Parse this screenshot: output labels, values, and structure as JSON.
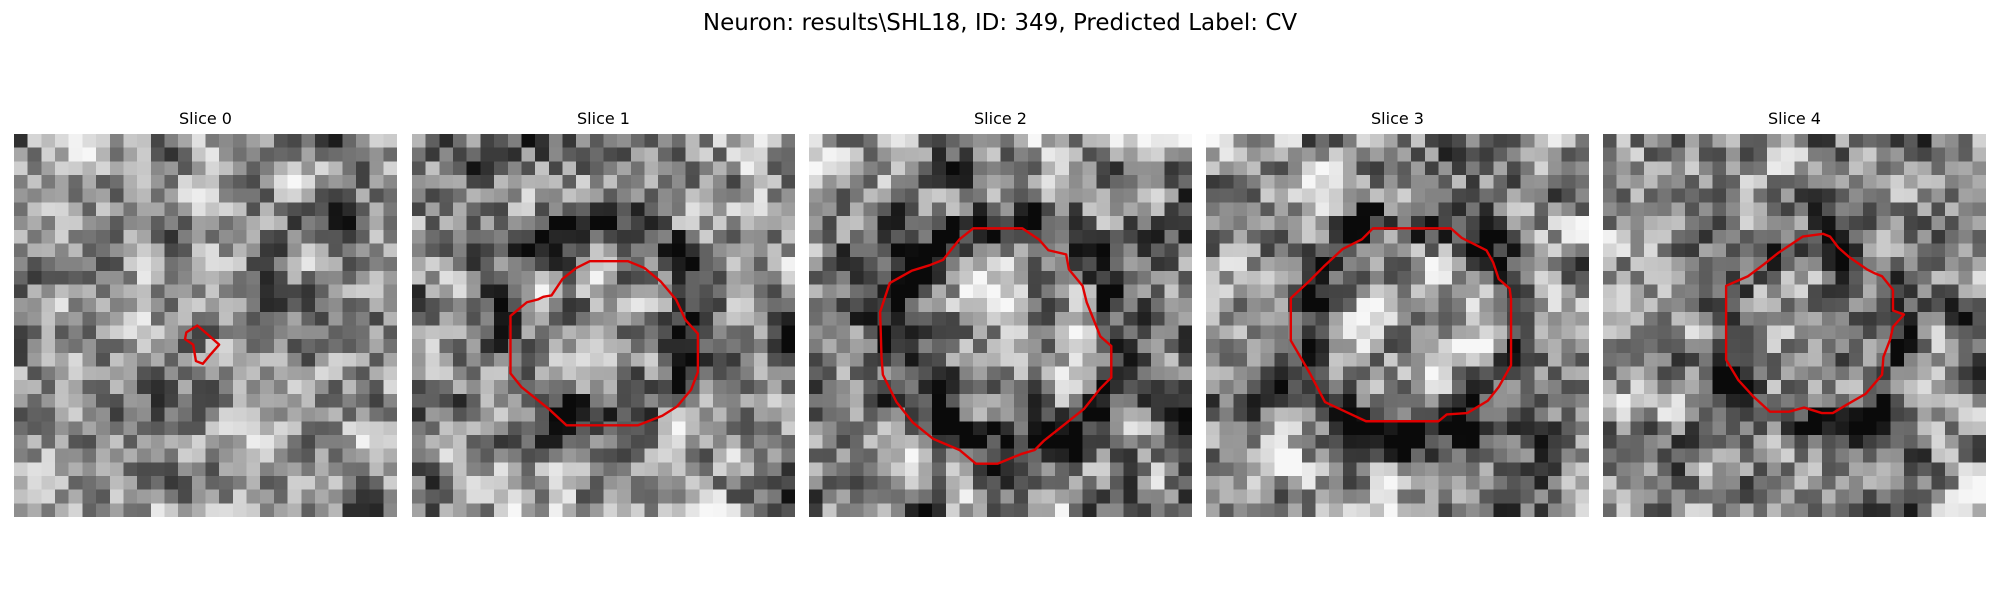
{
  "figure": {
    "title": "Neuron: results\\SHL18, ID: 349, Predicted Label: CV"
  },
  "colors": {
    "background": "#ffffff",
    "contour": "#e00000",
    "colormap": "grayscale"
  },
  "grid": {
    "rows": 28,
    "cols": 28
  },
  "panels": [
    {
      "title": "Slice 0",
      "seed": 11,
      "contrast": 0.55,
      "ring": null,
      "contour": [
        [
          12.6,
          14.5
        ],
        [
          13.4,
          14.0
        ],
        [
          14.1,
          14.6
        ],
        [
          15.0,
          15.4
        ],
        [
          14.3,
          16.2
        ],
        [
          13.8,
          16.8
        ],
        [
          13.3,
          16.6
        ],
        [
          13.1,
          15.4
        ],
        [
          12.5,
          15.0
        ]
      ]
    },
    {
      "title": "Slice 1",
      "seed": 23,
      "contrast": 0.7,
      "ring": {
        "cx": 13.8,
        "cy": 13.7,
        "r": 7.2,
        "w": 1.7,
        "depth": 0.35
      },
      "contour": [
        [
          10.2,
          11.8
        ],
        [
          11.0,
          10.6
        ],
        [
          12.0,
          9.8
        ],
        [
          13.0,
          9.3
        ],
        [
          15.8,
          9.3
        ],
        [
          17.0,
          9.8
        ],
        [
          18.2,
          10.8
        ],
        [
          19.3,
          12.1
        ],
        [
          20.0,
          13.6
        ],
        [
          20.9,
          14.6
        ],
        [
          20.9,
          17.4
        ],
        [
          20.4,
          18.7
        ],
        [
          19.4,
          19.9
        ],
        [
          18.3,
          20.6
        ],
        [
          16.5,
          21.3
        ],
        [
          11.3,
          21.3
        ],
        [
          10.0,
          20.1
        ],
        [
          8.0,
          18.5
        ],
        [
          7.2,
          17.5
        ],
        [
          7.2,
          13.3
        ],
        [
          8.4,
          12.3
        ],
        [
          9.2,
          12.1
        ],
        [
          9.6,
          11.9
        ]
      ]
    },
    {
      "title": "Slice 2",
      "seed": 37,
      "contrast": 0.75,
      "ring": {
        "cx": 14.6,
        "cy": 14.6,
        "r": 8.3,
        "w": 1.8,
        "depth": 0.4
      },
      "contour": [
        [
          9.8,
          9.2
        ],
        [
          11.0,
          7.7
        ],
        [
          12.0,
          6.9
        ],
        [
          15.6,
          6.9
        ],
        [
          16.8,
          7.7
        ],
        [
          17.5,
          8.5
        ],
        [
          18.8,
          8.8
        ],
        [
          19.0,
          9.9
        ],
        [
          20.0,
          11.1
        ],
        [
          20.3,
          12.3
        ],
        [
          21.3,
          14.8
        ],
        [
          22.1,
          15.5
        ],
        [
          22.1,
          17.8
        ],
        [
          21.3,
          18.6
        ],
        [
          20.1,
          20.1
        ],
        [
          18.6,
          21.3
        ],
        [
          17.2,
          22.4
        ],
        [
          16.5,
          23.1
        ],
        [
          15.5,
          23.4
        ],
        [
          13.8,
          24.1
        ],
        [
          12.2,
          24.1
        ],
        [
          11.0,
          23.1
        ],
        [
          9.1,
          22.3
        ],
        [
          7.6,
          21.1
        ],
        [
          6.4,
          19.6
        ],
        [
          5.4,
          17.6
        ],
        [
          5.3,
          16.3
        ],
        [
          5.2,
          13.0
        ],
        [
          5.9,
          10.9
        ],
        [
          7.5,
          10.0
        ],
        [
          8.8,
          9.6
        ]
      ]
    },
    {
      "title": "Slice 3",
      "seed": 53,
      "contrast": 0.72,
      "ring": {
        "cx": 14.8,
        "cy": 14.2,
        "r": 7.9,
        "w": 1.7,
        "depth": 0.36
      },
      "contour": [
        [
          8.6,
          9.7
        ],
        [
          10.0,
          8.4
        ],
        [
          11.4,
          7.7
        ],
        [
          12.2,
          6.9
        ],
        [
          17.9,
          6.9
        ],
        [
          18.7,
          7.6
        ],
        [
          20.5,
          8.5
        ],
        [
          21.0,
          9.4
        ],
        [
          21.4,
          10.6
        ],
        [
          22.2,
          11.3
        ],
        [
          22.3,
          12.1
        ],
        [
          22.3,
          15.3
        ],
        [
          22.3,
          16.9
        ],
        [
          21.4,
          18.5
        ],
        [
          20.6,
          19.5
        ],
        [
          19.1,
          20.4
        ],
        [
          17.6,
          20.5
        ],
        [
          17.0,
          21.0
        ],
        [
          13.0,
          21.0
        ],
        [
          11.7,
          21.0
        ],
        [
          10.2,
          20.3
        ],
        [
          8.7,
          19.6
        ],
        [
          7.6,
          17.5
        ],
        [
          6.2,
          15.1
        ],
        [
          6.2,
          12.0
        ],
        [
          7.5,
          10.8
        ]
      ]
    },
    {
      "title": "Slice 4",
      "seed": 71,
      "contrast": 0.68,
      "ring": {
        "cx": 15.2,
        "cy": 14.8,
        "r": 6.6,
        "w": 1.5,
        "depth": 0.28
      },
      "contour": [
        [
          10.6,
          10.4
        ],
        [
          11.8,
          9.5
        ],
        [
          12.8,
          8.7
        ],
        [
          14.6,
          7.5
        ],
        [
          16.1,
          7.3
        ],
        [
          16.6,
          7.5
        ],
        [
          17.2,
          8.3
        ],
        [
          18.0,
          9.0
        ],
        [
          19.3,
          9.9
        ],
        [
          19.9,
          10.2
        ],
        [
          20.4,
          10.4
        ],
        [
          21.2,
          11.4
        ],
        [
          21.2,
          12.9
        ],
        [
          22.0,
          13.2
        ],
        [
          21.2,
          14.1
        ],
        [
          21.0,
          15.0
        ],
        [
          20.5,
          16.3
        ],
        [
          20.4,
          17.6
        ],
        [
          19.8,
          18.3
        ],
        [
          19.2,
          19.0
        ],
        [
          17.8,
          19.8
        ],
        [
          16.8,
          20.4
        ],
        [
          16.0,
          20.4
        ],
        [
          14.7,
          20.0
        ],
        [
          13.6,
          20.3
        ],
        [
          12.2,
          20.3
        ],
        [
          11.0,
          19.2
        ],
        [
          9.9,
          18.0
        ],
        [
          9.0,
          16.5
        ],
        [
          9.0,
          11.1
        ]
      ]
    }
  ]
}
